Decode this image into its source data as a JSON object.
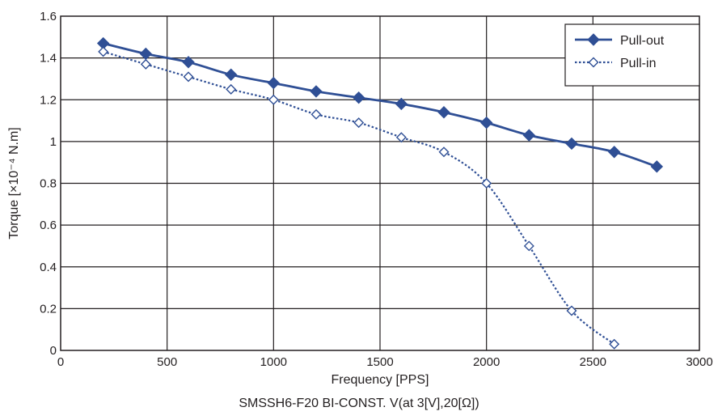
{
  "chart_data": {
    "type": "line",
    "caption": "SMSSH6-F20 BI-CONST. V(at 3[V],20[Ω])",
    "xlabel": "Frequency [PPS]",
    "ylabel": "Torque [×10⁻⁴ N.m]",
    "xlim": [
      0,
      3000
    ],
    "ylim": [
      0,
      1.6
    ],
    "xticks": [
      0,
      500,
      1000,
      1500,
      2000,
      2500,
      3000
    ],
    "yticks": [
      0,
      0.2,
      0.4,
      0.6,
      0.8,
      1,
      1.2,
      1.4,
      1.6
    ],
    "ytick_labels": [
      "0",
      "0.2",
      "0.4",
      "0.6",
      "0.8",
      "1",
      "1.2",
      "1.4",
      "1.6"
    ],
    "grid": true,
    "legend_position": "top-right",
    "series": [
      {
        "name": "Pull-out",
        "marker": "filled-diamond",
        "line": "solid",
        "color": "#2f4f95",
        "x": [
          200,
          400,
          600,
          800,
          1000,
          1200,
          1400,
          1600,
          1800,
          2000,
          2200,
          2400,
          2600,
          2800
        ],
        "y": [
          1.47,
          1.42,
          1.38,
          1.32,
          1.28,
          1.24,
          1.21,
          1.18,
          1.14,
          1.09,
          1.03,
          0.99,
          0.95,
          0.88
        ]
      },
      {
        "name": "Pull-in",
        "marker": "open-diamond",
        "line": "dotted",
        "color": "#2f4f95",
        "x": [
          200,
          400,
          600,
          800,
          1000,
          1200,
          1400,
          1600,
          1800,
          2000,
          2200,
          2400,
          2600
        ],
        "y": [
          1.43,
          1.37,
          1.31,
          1.25,
          1.2,
          1.13,
          1.09,
          1.02,
          0.95,
          0.8,
          0.5,
          0.19,
          0.03
        ]
      }
    ]
  }
}
